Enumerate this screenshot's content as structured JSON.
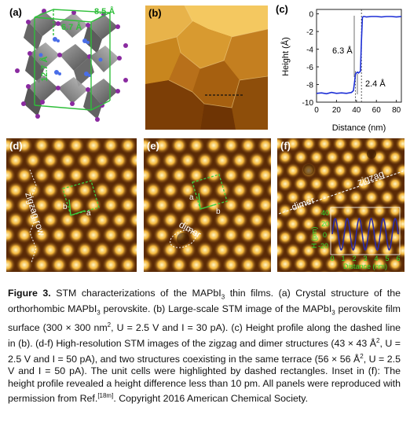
{
  "panels": {
    "a": {
      "label": "(a)",
      "dims": [
        "8.5 Å",
        "6.7 Å",
        "12.7 Å"
      ]
    },
    "b": {
      "label": "(b)"
    },
    "c": {
      "label": "(c)"
    },
    "d": {
      "label": "(d)",
      "annotation": "zigzag row",
      "vec_a": "a",
      "vec_b": "b"
    },
    "e": {
      "label": "(e)",
      "annotation": "dimer",
      "vec_a": "a",
      "vec_b": "b"
    },
    "f": {
      "label": "(f)",
      "annotation_dimer": "dimer",
      "annotation_zigzag": "zigzag",
      "inset": {
        "ylabel": "H (pm)",
        "yticks": [
          "40",
          "20",
          "0",
          "-20"
        ],
        "xticks": [
          "0",
          "1",
          "2",
          "3",
          "4",
          "5",
          "6"
        ],
        "xlabel": "Distance (nm)"
      }
    }
  },
  "chart_data": {
    "type": "line",
    "title": "",
    "xlabel": "Distance (nm)",
    "ylabel": "Height (Å)",
    "xlim": [
      0,
      85
    ],
    "ylim": [
      -10,
      0.5
    ],
    "xticks": [
      0,
      20,
      40,
      60,
      80
    ],
    "yticks": [
      0,
      -2,
      -4,
      -6,
      -8,
      -10
    ],
    "annotations": [
      "6.3 Å",
      "2.4 Å"
    ],
    "color": "#1d2fd6",
    "series": [
      {
        "x": [
          0,
          5,
          10,
          15,
          20,
          25,
          30,
          35,
          37,
          38,
          39,
          40,
          41,
          42,
          43,
          44,
          45,
          46,
          47,
          48,
          50,
          55,
          60,
          65,
          70,
          75,
          80,
          85
        ],
        "y": [
          -9.0,
          -8.95,
          -9.05,
          -8.9,
          -9.0,
          -8.95,
          -9.0,
          -8.9,
          -8.7,
          -7.8,
          -6.8,
          -6.7,
          -6.6,
          -6.7,
          -6.6,
          -6.5,
          -3.0,
          -0.4,
          -0.3,
          -0.3,
          -0.35,
          -0.3,
          -0.3,
          -0.35,
          -0.3,
          -0.3,
          -0.35,
          -0.3
        ]
      }
    ]
  },
  "caption": {
    "figure_label": "Figure 3.",
    "text_1": " STM characterizations of the MAPbI",
    "sub_1": "3",
    "text_2": " thin films. (a) Crystal structure of the orthorhombic MAPbI",
    "sub_2": "3",
    "text_3": " perovskite. (b) Large-scale STM image of the MAPbI",
    "sub_3": "3",
    "text_4": " perovskite film surface (300 × 300 nm",
    "sup_4": "2",
    "text_5": ", U = 2.5 V and I = 30 pA). (c) Height profile along the dashed line in (b). (d-f) High-resolution STM images of the zigzag and dimer structures (43 × 43 Å",
    "sup_5": "2",
    "text_6": ", U = 2.5 V and I = 50 pA), and two structures coexisting in the same terrace (56 × 56 Å",
    "sup_6": "2",
    "text_7": ", U = 2.5 V and I = 50 pA). The unit cells were highlighted by dashed rectangles. Inset in (f): The height profile revealed a height difference less than 10 pm. All panels were reproduced with permission from Ref.",
    "ref": "[18m]",
    "text_8": ". Copyright 2016 American Chemical Society."
  }
}
